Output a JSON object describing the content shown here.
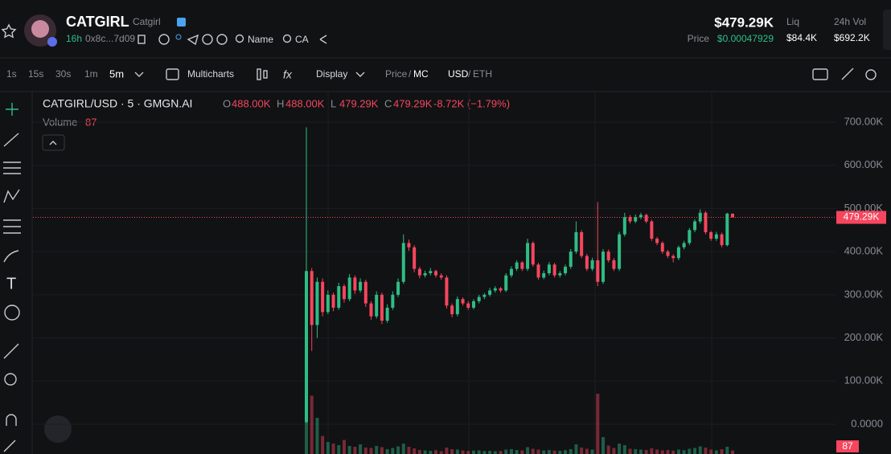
{
  "header": {
    "title": "CATGIRL",
    "subtitle": "Catgirl",
    "age": "16h",
    "address": "0x8c...7d09",
    "links": [
      "Name",
      "CA"
    ],
    "market_cap": "$479.29K",
    "price_label": "Price",
    "price": "$0.00047929",
    "liq_label": "Liq",
    "liq": "$84.4K",
    "vol_label": "24h Vol",
    "vol": "$692.2K"
  },
  "toolbar": {
    "intervals": [
      "1s",
      "15s",
      "30s",
      "1m",
      "5m"
    ],
    "multicharts": "Multicharts",
    "display": "Display",
    "price": "Price",
    "separator": "/",
    "mc": "MC",
    "usd": "USD",
    "eth": "ETH"
  },
  "chart_data": {
    "type": "candlestick",
    "title": "CATGIRL/USD · 5 · GMGN.AI",
    "ohlc": [
      {
        "key": "O",
        "value": "488.00K"
      },
      {
        "key": "H",
        "value": "488.00K"
      },
      {
        "key": "L",
        "value": "479.29K"
      },
      {
        "key": "C",
        "value": "479.29K"
      }
    ],
    "change": "-8.72K (−1.79%)",
    "volume_label": "Volume",
    "up_color": "#2ebd85",
    "down_color": "#f6465d",
    "ylim": [
      -68900,
      768900
    ],
    "yticks": [
      {
        "value": 700000,
        "label": "700.00K"
      },
      {
        "value": 600000,
        "label": "600.00K"
      },
      {
        "value": 500000,
        "label": "500.00K"
      },
      {
        "value": 400000,
        "label": "400.00K"
      },
      {
        "value": 300000,
        "label": "300.00K"
      },
      {
        "value": 200000,
        "label": "200.00K"
      },
      {
        "value": 100000,
        "label": "100.00K"
      },
      {
        "value": 0,
        "label": "0.0000"
      }
    ],
    "last_price": {
      "value": 479290,
      "label": "479.29K"
    },
    "open": [
      5000,
      355000,
      230000,
      330000,
      260000,
      300000,
      270000,
      320000,
      290000,
      340000,
      310000,
      330000,
      280000,
      250000,
      300000,
      240000,
      270000,
      300000,
      330000,
      420000,
      410000,
      360000,
      345000,
      350000,
      355000,
      345000,
      340000,
      275000,
      255000,
      290000,
      280000,
      270000,
      285000,
      295000,
      300000,
      310000,
      315000,
      310000,
      345000,
      360000,
      375000,
      360000,
      420000,
      370000,
      340000,
      350000,
      370000,
      345000,
      350000,
      365000,
      400000,
      445000,
      390000,
      360000,
      380000,
      330000,
      400000,
      380000,
      360000,
      440000,
      480000,
      470000,
      480000,
      485000,
      470000,
      430000,
      420000,
      400000,
      390000,
      385000,
      410000,
      420000,
      450000,
      470000,
      490000,
      445000,
      430000,
      440000,
      415000,
      488000
    ],
    "high": [
      688000,
      362000,
      340000,
      338000,
      310000,
      305000,
      328000,
      325000,
      348000,
      345000,
      338000,
      335000,
      285000,
      308000,
      305000,
      278000,
      308000,
      338000,
      440000,
      428000,
      415000,
      365000,
      356000,
      362000,
      358000,
      350000,
      345000,
      280000,
      296000,
      294000,
      285000,
      290000,
      300000,
      304000,
      316000,
      320000,
      318000,
      350000,
      366000,
      380000,
      378000,
      430000,
      424000,
      374000,
      356000,
      376000,
      374000,
      355000,
      370000,
      406000,
      470000,
      450000,
      395000,
      386000,
      515000,
      406000,
      405000,
      385000,
      446000,
      490000,
      485000,
      486000,
      490000,
      488000,
      474000,
      434000,
      424000,
      404000,
      394000,
      414000,
      425000,
      455000,
      475000,
      498000,
      494000,
      448000,
      446000,
      444000,
      490000,
      488000
    ],
    "low": [
      3000,
      170000,
      200000,
      250000,
      255000,
      262000,
      265000,
      282000,
      285000,
      302000,
      305000,
      272000,
      242000,
      245000,
      232000,
      235000,
      265000,
      295000,
      325000,
      402000,
      352000,
      338000,
      340000,
      345000,
      340000,
      335000,
      268000,
      248000,
      250000,
      275000,
      265000,
      266000,
      280000,
      290000,
      296000,
      305000,
      305000,
      306000,
      340000,
      355000,
      355000,
      355000,
      365000,
      335000,
      336000,
      345000,
      340000,
      340000,
      345000,
      360000,
      395000,
      385000,
      355000,
      355000,
      320000,
      325000,
      375000,
      355000,
      355000,
      435000,
      465000,
      466000,
      475000,
      466000,
      425000,
      415000,
      395000,
      385000,
      375000,
      380000,
      405000,
      415000,
      445000,
      465000,
      440000,
      425000,
      425000,
      410000,
      412000,
      479290
    ],
    "close": [
      355000,
      230000,
      330000,
      260000,
      300000,
      270000,
      320000,
      290000,
      340000,
      310000,
      330000,
      280000,
      250000,
      300000,
      240000,
      270000,
      300000,
      330000,
      420000,
      410000,
      360000,
      345000,
      350000,
      355000,
      345000,
      340000,
      275000,
      255000,
      290000,
      280000,
      270000,
      285000,
      295000,
      300000,
      310000,
      315000,
      310000,
      345000,
      360000,
      375000,
      360000,
      420000,
      370000,
      340000,
      350000,
      370000,
      345000,
      350000,
      365000,
      400000,
      445000,
      390000,
      360000,
      380000,
      330000,
      400000,
      380000,
      360000,
      440000,
      480000,
      470000,
      480000,
      485000,
      470000,
      430000,
      420000,
      400000,
      390000,
      385000,
      410000,
      420000,
      450000,
      470000,
      490000,
      445000,
      430000,
      440000,
      415000,
      488000,
      479290
    ],
    "volume": [
      1900,
      1450,
      900,
      450,
      300,
      260,
      220,
      350,
      200,
      180,
      240,
      160,
      150,
      200,
      170,
      120,
      150,
      190,
      260,
      180,
      140,
      100,
      90,
      80,
      95,
      70,
      160,
      120,
      110,
      90,
      80,
      85,
      90,
      75,
      80,
      70,
      75,
      110,
      120,
      100,
      90,
      170,
      130,
      110,
      90,
      100,
      85,
      80,
      95,
      120,
      240,
      160,
      130,
      110,
      1500,
      420,
      210,
      150,
      260,
      220,
      130,
      120,
      110,
      100,
      140,
      110,
      90,
      100,
      85,
      110,
      95,
      130,
      150,
      190,
      160,
      110,
      90,
      120,
      180,
      87
    ]
  }
}
